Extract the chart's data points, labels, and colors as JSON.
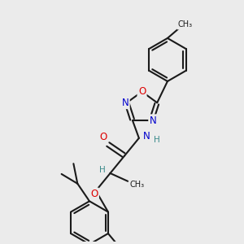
{
  "bg_color": "#ebebeb",
  "bond_color": "#1a1a1a",
  "bond_width": 1.5,
  "atom_colors": {
    "O": "#dd0000",
    "N": "#0000cc",
    "H": "#3a8a8a"
  },
  "font_size": 8.5
}
